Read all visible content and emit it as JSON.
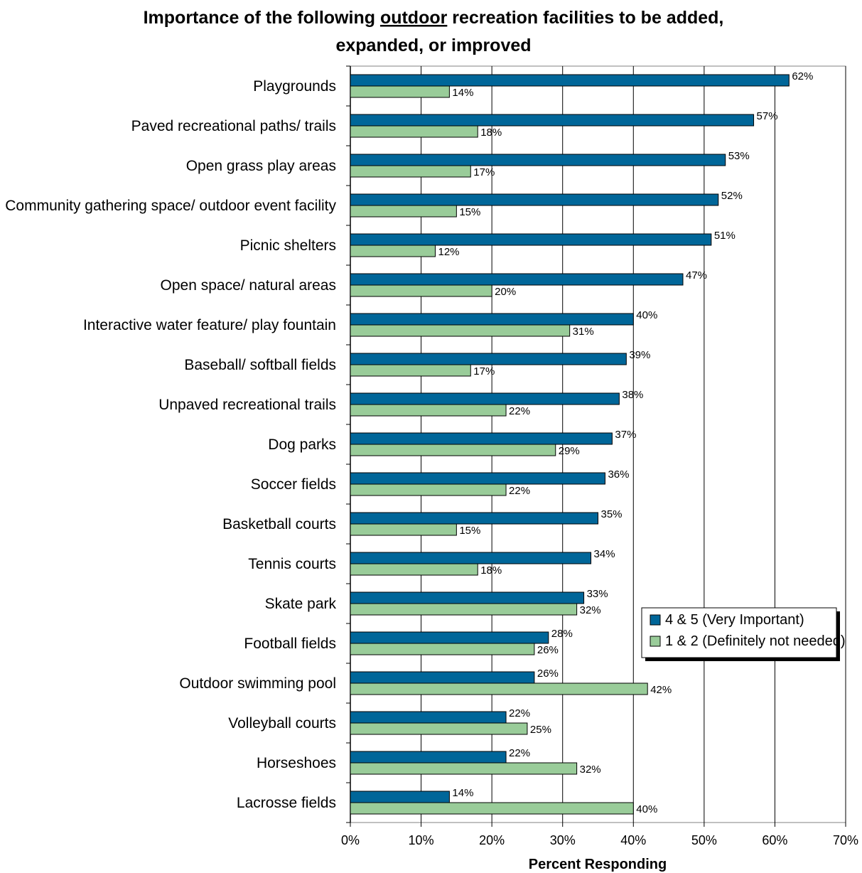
{
  "chart_data": {
    "type": "bar",
    "orientation": "horizontal",
    "title_line1_pre": "Importance of the following ",
    "title_line1_underlined": "outdoor",
    "title_line1_post": " recreation facilities to be added,",
    "title_line2": "expanded, or improved",
    "xlabel": "Percent Responding",
    "xlim": [
      0,
      70
    ],
    "xticks": [
      "0%",
      "10%",
      "20%",
      "30%",
      "40%",
      "50%",
      "60%",
      "70%"
    ],
    "grid": true,
    "legend_position": "right",
    "categories": [
      "Playgrounds",
      "Paved recreational paths/ trails",
      "Open grass play areas",
      "Community gathering space/ outdoor event facility",
      "Picnic shelters",
      "Open space/ natural areas",
      "Interactive water feature/ play fountain",
      "Baseball/ softball fields",
      "Unpaved recreational trails",
      "Dog parks",
      "Soccer fields",
      "Basketball courts",
      "Tennis courts",
      "Skate park",
      "Football fields",
      "Outdoor swimming pool",
      "Volleyball courts",
      "Horseshoes",
      "Lacrosse fields"
    ],
    "series": [
      {
        "name": "4 & 5 (Very Important)",
        "color": "#006699",
        "values": [
          62,
          57,
          53,
          52,
          51,
          47,
          40,
          39,
          38,
          37,
          36,
          35,
          34,
          33,
          28,
          26,
          22,
          22,
          14
        ],
        "labels": [
          "62%",
          "57%",
          "53%",
          "52%",
          "51%",
          "47%",
          "40%",
          "39%",
          "38%",
          "37%",
          "36%",
          "35%",
          "34%",
          "33%",
          "28%",
          "26%",
          "22%",
          "22%",
          "14%"
        ]
      },
      {
        "name": "1 & 2 (Definitely not needed)",
        "color": "#99CC99",
        "values": [
          14,
          18,
          17,
          15,
          12,
          20,
          31,
          17,
          22,
          29,
          22,
          15,
          18,
          32,
          26,
          42,
          25,
          32,
          40
        ],
        "labels": [
          "14%",
          "18%",
          "17%",
          "15%",
          "12%",
          "20%",
          "31%",
          "17%",
          "22%",
          "29%",
          "22%",
          "15%",
          "18%",
          "32%",
          "26%",
          "42%",
          "25%",
          "32%",
          "40%"
        ]
      }
    ]
  }
}
